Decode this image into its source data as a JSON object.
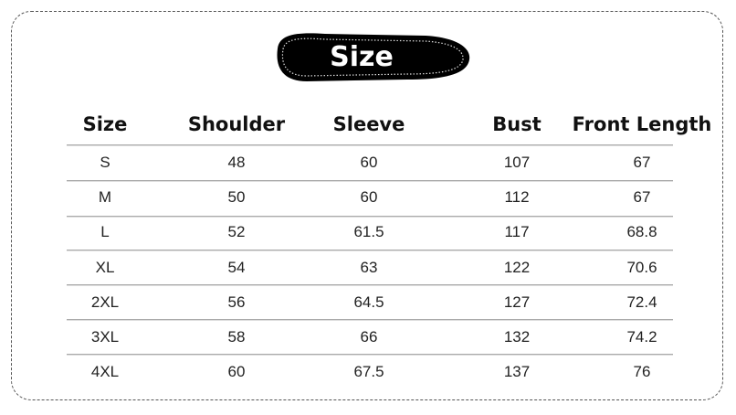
{
  "badge": {
    "label": "Size",
    "color": "#000000"
  },
  "table": {
    "headers": [
      "Size",
      "Shoulder",
      "Sleeve",
      "Bust",
      "Front Length"
    ],
    "rows": [
      [
        "S",
        "48",
        "60",
        "107",
        "67"
      ],
      [
        "M",
        "50",
        "60",
        "112",
        "67"
      ],
      [
        "L",
        "52",
        "61.5",
        "117",
        "68.8"
      ],
      [
        "XL",
        "54",
        "63",
        "122",
        "70.6"
      ],
      [
        "2XL",
        "56",
        "64.5",
        "127",
        "72.4"
      ],
      [
        "3XL",
        "58",
        "66",
        "132",
        "74.2"
      ],
      [
        "4XL",
        "60",
        "67.5",
        "137",
        "76"
      ]
    ]
  }
}
